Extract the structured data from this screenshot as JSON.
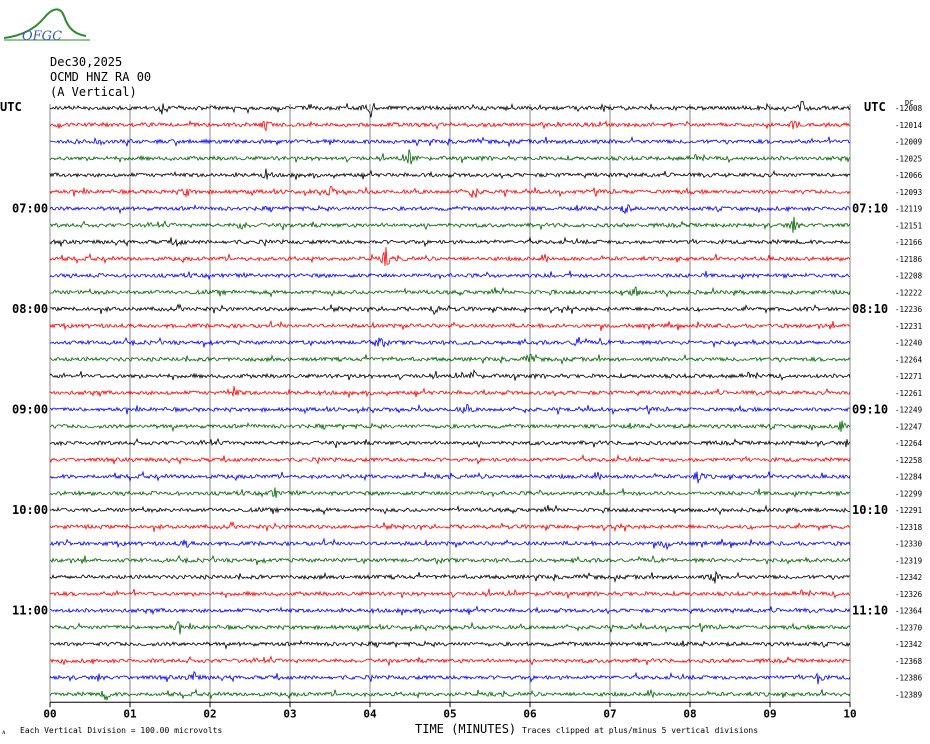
{
  "header": {
    "date": "Dec30,2025",
    "station": "OCMD HNZ RA 00",
    "component": "(A Vertical)",
    "logo_text": "OFGC"
  },
  "labels": {
    "utc_left": "UTC",
    "utc_right": "UTC",
    "dc_label": "DC",
    "x_axis_title": "TIME (MINUTES)",
    "scale_note": "Each Vertical Division =  100.00 microvolts",
    "clip_note": "Traces clipped at plus/minus 5 vertical divisions"
  },
  "colors": {
    "traces": [
      "#000000",
      "#ff0000",
      "#0000ff",
      "#006400"
    ],
    "grid": "#000000"
  },
  "chart_data": {
    "type": "line",
    "subtype": "helicorder",
    "title": "",
    "xlabel": "TIME (MINUTES)",
    "xlim": [
      0,
      10
    ],
    "x_ticks": [
      "00",
      "01",
      "02",
      "03",
      "04",
      "05",
      "06",
      "07",
      "08",
      "09",
      "10"
    ],
    "trace_count": 36,
    "trace_color_cycle": [
      "black",
      "red",
      "blue",
      "green"
    ],
    "left_hour_labels": [
      {
        "trace_index": 6,
        "label": "07:00"
      },
      {
        "trace_index": 12,
        "label": "08:00"
      },
      {
        "trace_index": 18,
        "label": "09:00"
      },
      {
        "trace_index": 24,
        "label": "10:00"
      },
      {
        "trace_index": 30,
        "label": "11:00"
      }
    ],
    "right_hour_labels": [
      {
        "trace_index": 6,
        "label": "07:10"
      },
      {
        "trace_index": 12,
        "label": "08:10"
      },
      {
        "trace_index": 18,
        "label": "09:10"
      },
      {
        "trace_index": 24,
        "label": "10:10"
      },
      {
        "trace_index": 30,
        "label": "11:10"
      }
    ],
    "dc_offsets": [
      "-12008",
      "-12014",
      "-12009",
      "-12025",
      "-12066",
      "-12093",
      "-12119",
      "-12151",
      "-12166",
      "-12186",
      "-12208",
      "-12222",
      "-12236",
      "-12231",
      "-12240",
      "-12264",
      "-12271",
      "-12261",
      "-12249",
      "-12247",
      "-12264",
      "-12258",
      "-12284",
      "-12299",
      "-12291",
      "-12318",
      "-12330",
      "-12319",
      "-12342",
      "-12326",
      "-12364",
      "-12370",
      "-12342",
      "-12368",
      "-12386",
      "-12389"
    ],
    "events": [
      {
        "trace": 0,
        "minute": 1.4,
        "amp": 5
      },
      {
        "trace": 0,
        "minute": 4.0,
        "amp": 14
      },
      {
        "trace": 0,
        "minute": 9.4,
        "amp": 7
      },
      {
        "trace": 1,
        "minute": 2.7,
        "amp": 5
      },
      {
        "trace": 1,
        "minute": 9.3,
        "amp": 5
      },
      {
        "trace": 2,
        "minute": 0.6,
        "amp": 5
      },
      {
        "trace": 2,
        "minute": 6.6,
        "amp": 5
      },
      {
        "trace": 3,
        "minute": 4.5,
        "amp": 10
      },
      {
        "trace": 4,
        "minute": 2.7,
        "amp": 5
      },
      {
        "trace": 5,
        "minute": 1.7,
        "amp": 6
      },
      {
        "trace": 5,
        "minute": 3.5,
        "amp": 7
      },
      {
        "trace": 5,
        "minute": 5.3,
        "amp": 9
      },
      {
        "trace": 6,
        "minute": 7.2,
        "amp": 6
      },
      {
        "trace": 7,
        "minute": 2.4,
        "amp": 6
      },
      {
        "trace": 7,
        "minute": 9.3,
        "amp": 6
      },
      {
        "trace": 8,
        "minute": 1.6,
        "amp": 6
      },
      {
        "trace": 9,
        "minute": 4.2,
        "amp": 10
      },
      {
        "trace": 11,
        "minute": 7.3,
        "amp": 8
      },
      {
        "trace": 12,
        "minute": 4.8,
        "amp": 7
      },
      {
        "trace": 14,
        "minute": 4.1,
        "amp": 7
      },
      {
        "trace": 14,
        "minute": 6.6,
        "amp": 7
      },
      {
        "trace": 15,
        "minute": 6.0,
        "amp": 6
      },
      {
        "trace": 16,
        "minute": 5.3,
        "amp": 6
      },
      {
        "trace": 17,
        "minute": 2.3,
        "amp": 6
      },
      {
        "trace": 18,
        "minute": 5.2,
        "amp": 6
      },
      {
        "trace": 19,
        "minute": 9.9,
        "amp": 6
      },
      {
        "trace": 22,
        "minute": 8.1,
        "amp": 8
      },
      {
        "trace": 23,
        "minute": 2.8,
        "amp": 6
      },
      {
        "trace": 26,
        "minute": 1.7,
        "amp": 5
      },
      {
        "trace": 26,
        "minute": 7.7,
        "amp": 6
      },
      {
        "trace": 28,
        "minute": 8.3,
        "amp": 7
      },
      {
        "trace": 31,
        "minute": 1.6,
        "amp": 5
      },
      {
        "trace": 34,
        "minute": 1.8,
        "amp": 7
      },
      {
        "trace": 34,
        "minute": 9.6,
        "amp": 7
      },
      {
        "trace": 35,
        "minute": 0.7,
        "amp": 6
      }
    ]
  }
}
